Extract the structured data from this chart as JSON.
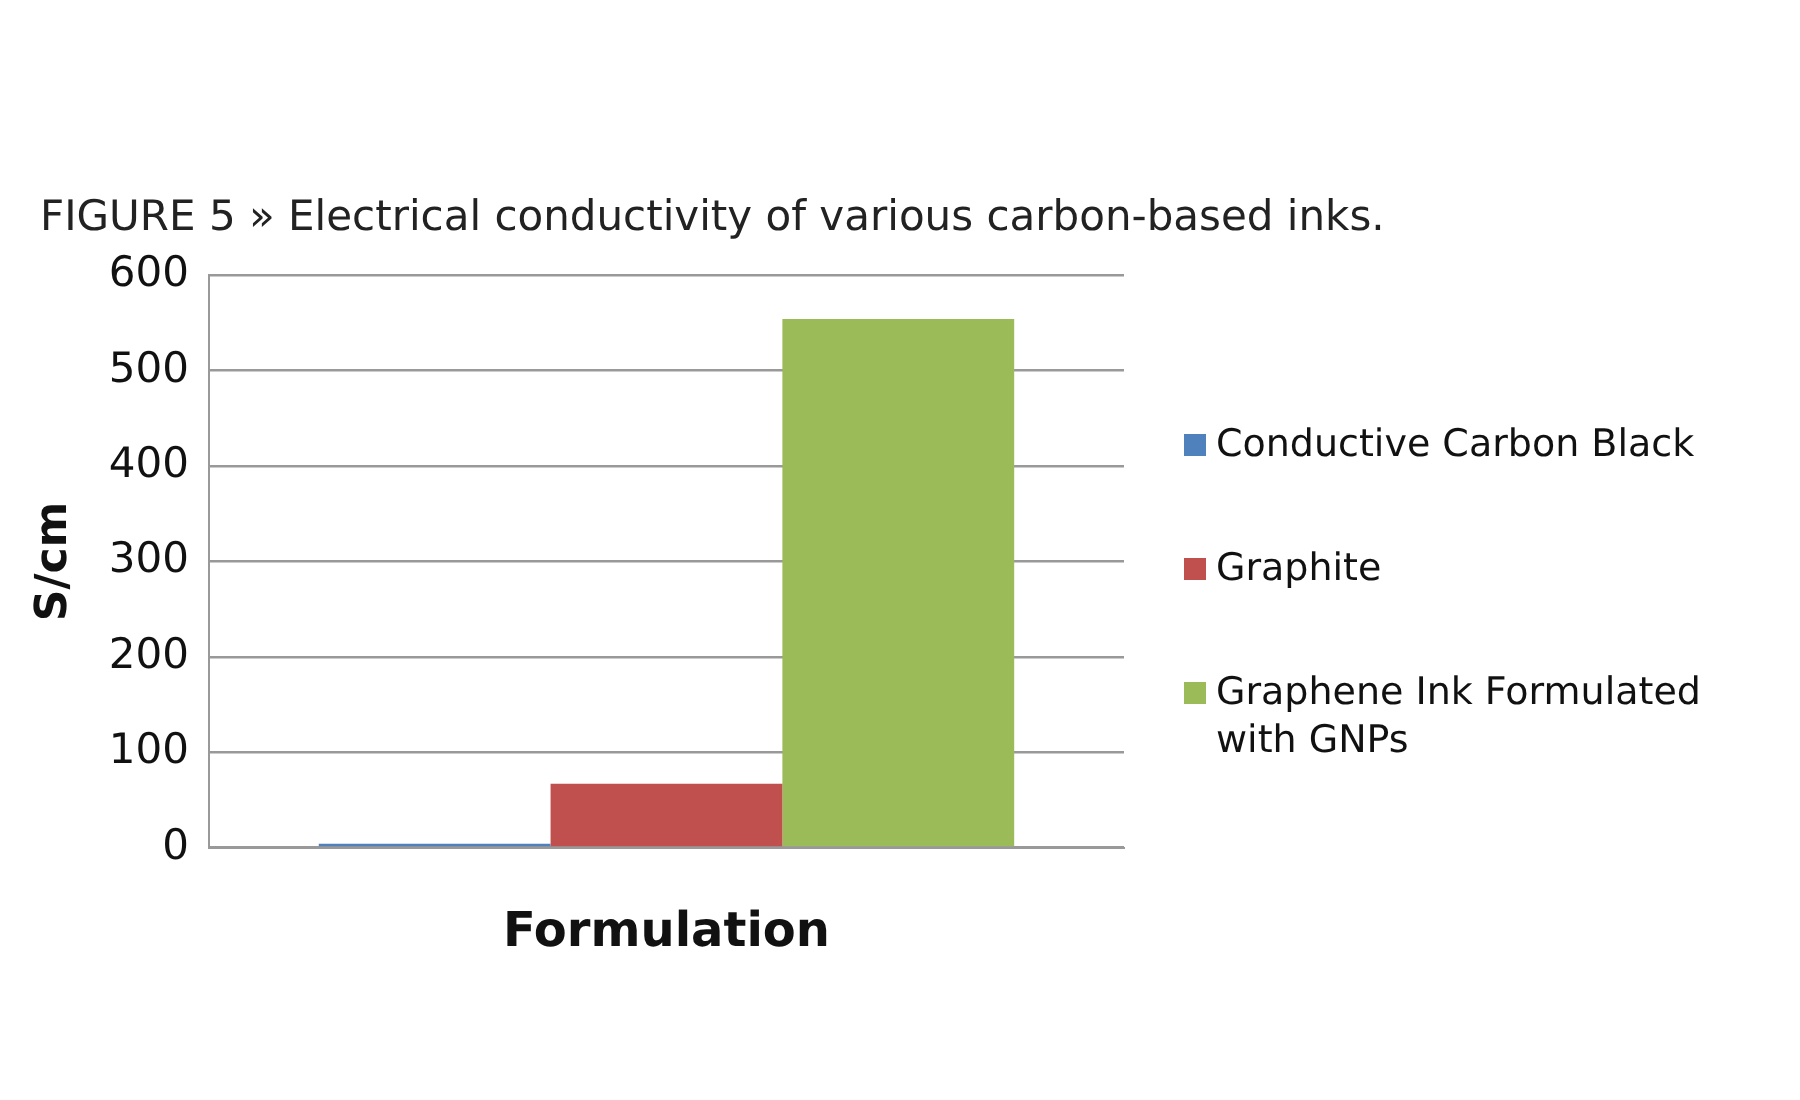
{
  "chart_data": {
    "type": "bar",
    "title": "FIGURE 5 » Electrical conductivity of various carbon-based inks.",
    "xlabel": "Formulation",
    "ylabel": "S/cm",
    "categories": [
      null
    ],
    "series": [
      {
        "name": "Conductive Carbon Black",
        "color": "#4f81bd",
        "values": [
          4
        ]
      },
      {
        "name": "Graphite",
        "color": "#c0504d",
        "values": [
          67
        ]
      },
      {
        "name": "Graphene Ink Formulated with GNPs",
        "color": "#9bbb59",
        "values": [
          554
        ]
      }
    ],
    "ylim": [
      0,
      600
    ],
    "yticks": [
      0,
      100,
      200,
      300,
      400,
      500,
      600
    ],
    "grid": "y",
    "legend": "right"
  }
}
